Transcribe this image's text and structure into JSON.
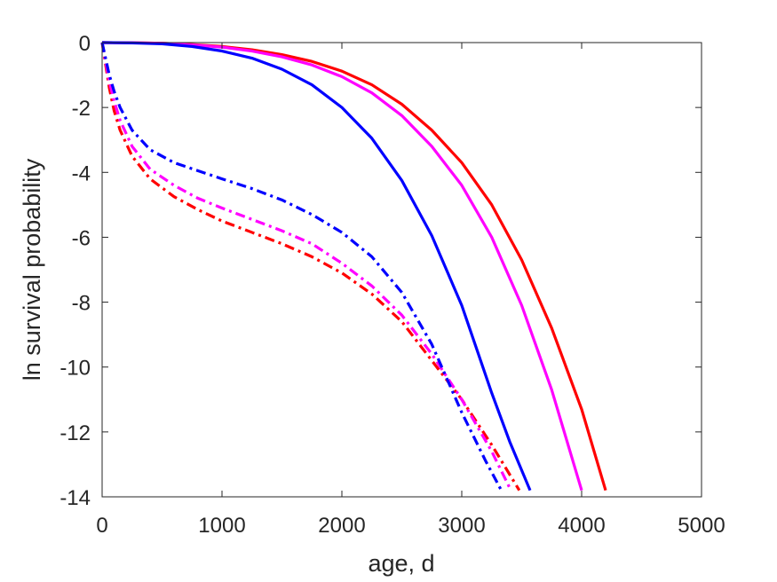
{
  "chart_data": {
    "type": "line",
    "title": "",
    "xlabel": "age, d",
    "ylabel": "ln survival probability",
    "xlim": [
      0,
      5000
    ],
    "ylim": [
      -14,
      0
    ],
    "xticks": [
      0,
      1000,
      2000,
      3000,
      4000,
      5000
    ],
    "yticks": [
      0,
      -2,
      -4,
      -6,
      -8,
      -10,
      -12,
      -14
    ],
    "grid": false,
    "legend": "none",
    "series": [
      {
        "color": "#ff0000",
        "style": "solid",
        "x": [
          0,
          250,
          500,
          750,
          1000,
          1250,
          1500,
          1750,
          2000,
          2250,
          2500,
          2750,
          3000,
          3250,
          3500,
          3750,
          4000,
          4200
        ],
        "y": [
          0,
          -0.005,
          -0.02,
          -0.06,
          -0.12,
          -0.22,
          -0.37,
          -0.58,
          -0.88,
          -1.3,
          -1.9,
          -2.7,
          -3.7,
          -5.0,
          -6.7,
          -8.8,
          -11.3,
          -13.8
        ]
      },
      {
        "color": "#ff00ff",
        "style": "solid",
        "x": [
          0,
          250,
          500,
          750,
          1000,
          1250,
          1500,
          1750,
          2000,
          2250,
          2500,
          2750,
          3000,
          3250,
          3500,
          3750,
          4000
        ],
        "y": [
          0,
          -0.005,
          -0.02,
          -0.07,
          -0.14,
          -0.26,
          -0.44,
          -0.69,
          -1.05,
          -1.55,
          -2.25,
          -3.2,
          -4.4,
          -6.0,
          -8.1,
          -10.7,
          -13.8
        ]
      },
      {
        "color": "#0000ff",
        "style": "solid",
        "x": [
          0,
          250,
          500,
          750,
          1000,
          1250,
          1500,
          1750,
          2000,
          2250,
          2500,
          2750,
          3000,
          3250,
          3400,
          3570
        ],
        "y": [
          0,
          -0.01,
          -0.04,
          -0.12,
          -0.26,
          -0.48,
          -0.82,
          -1.3,
          -2.0,
          -2.95,
          -4.25,
          -5.95,
          -8.1,
          -10.8,
          -12.3,
          -13.8
        ]
      },
      {
        "color": "#ff0000",
        "style": "dashdot",
        "x": [
          0,
          30,
          60,
          100,
          150,
          250,
          400,
          600,
          800,
          1000,
          1250,
          1500,
          1750,
          2000,
          2250,
          2500,
          2750,
          3000,
          3250,
          3480
        ],
        "y": [
          0,
          -0.7,
          -1.4,
          -2.1,
          -2.7,
          -3.5,
          -4.2,
          -4.75,
          -5.15,
          -5.5,
          -5.85,
          -6.2,
          -6.6,
          -7.1,
          -7.75,
          -8.6,
          -9.8,
          -11.0,
          -12.4,
          -13.8
        ]
      },
      {
        "color": "#ff00ff",
        "style": "dashdot",
        "x": [
          0,
          30,
          60,
          100,
          150,
          250,
          400,
          600,
          800,
          1000,
          1250,
          1500,
          1750,
          2000,
          2250,
          2500,
          2750,
          3000,
          3250,
          3410
        ],
        "y": [
          0,
          -0.6,
          -1.2,
          -1.8,
          -2.4,
          -3.2,
          -3.9,
          -4.4,
          -4.8,
          -5.1,
          -5.45,
          -5.8,
          -6.2,
          -6.8,
          -7.5,
          -8.4,
          -9.6,
          -11.0,
          -12.6,
          -13.8
        ]
      },
      {
        "color": "#0000ff",
        "style": "dashdot",
        "x": [
          0,
          30,
          60,
          100,
          150,
          250,
          400,
          600,
          800,
          1000,
          1250,
          1500,
          1750,
          2000,
          2250,
          2500,
          2750,
          3000,
          3200,
          3330
        ],
        "y": [
          0,
          -0.5,
          -1.0,
          -1.5,
          -2.0,
          -2.7,
          -3.3,
          -3.7,
          -3.95,
          -4.2,
          -4.5,
          -4.85,
          -5.3,
          -5.85,
          -6.6,
          -7.7,
          -9.3,
          -11.4,
          -12.9,
          -13.8
        ]
      }
    ]
  }
}
